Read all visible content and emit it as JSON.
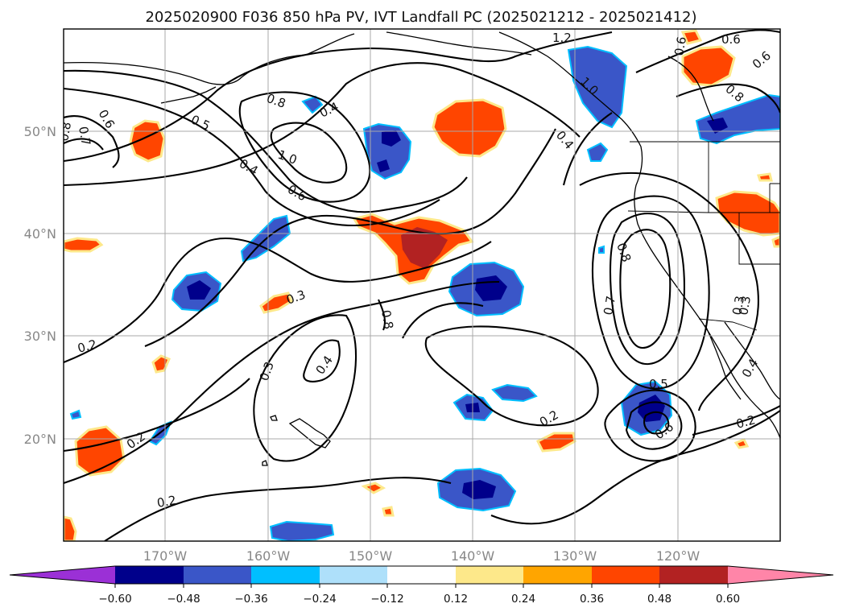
{
  "title": "2025020900 F036 850 hPa PV, IVT Landfall PC (2025021212 - 2025021412)",
  "map": {
    "lat_ticks": [
      "50°N",
      "40°N",
      "30°N",
      "20°N"
    ],
    "lon_ticks": [
      "170°W",
      "160°W",
      "150°W",
      "140°W",
      "130°W",
      "120°W"
    ],
    "contour_labels": [
      "1.2",
      "0.6",
      "0.8",
      "1.0",
      "0.4",
      "0.5",
      "0.4",
      "1.0",
      "0.6",
      "0.8",
      "0.6",
      "0.8",
      "0.4",
      "0.6",
      "0.7",
      "0.3",
      "0.8",
      "0.7",
      "0.3",
      "0.2",
      "0.3",
      "0.4",
      "0.2",
      "0.2",
      "0.5",
      "0.6",
      "0.2",
      "0.2",
      "0.3",
      "0.4",
      "0.6",
      "0.8"
    ]
  },
  "colorbar": {
    "ticks": [
      "−0.60",
      "−0.48",
      "−0.36",
      "−0.24",
      "−0.12",
      "0.12",
      "0.24",
      "0.36",
      "0.48",
      "0.60"
    ],
    "colors": [
      "#9b30d6",
      "#00008b",
      "#3a56c8",
      "#00bfff",
      "#aee0fa",
      "#ffffff",
      "#fde88a",
      "#ffa500",
      "#ff4500",
      "#b22222",
      "#ff85a8"
    ]
  },
  "colors": {
    "neg_strong": "#00008b",
    "neg_mid": "#3a56c8",
    "neg_light": "#00bfff",
    "pos_light": "#fde88a",
    "pos_mid": "#ffa500",
    "pos_strong": "#ff4500",
    "pos_dark": "#b22222"
  }
}
